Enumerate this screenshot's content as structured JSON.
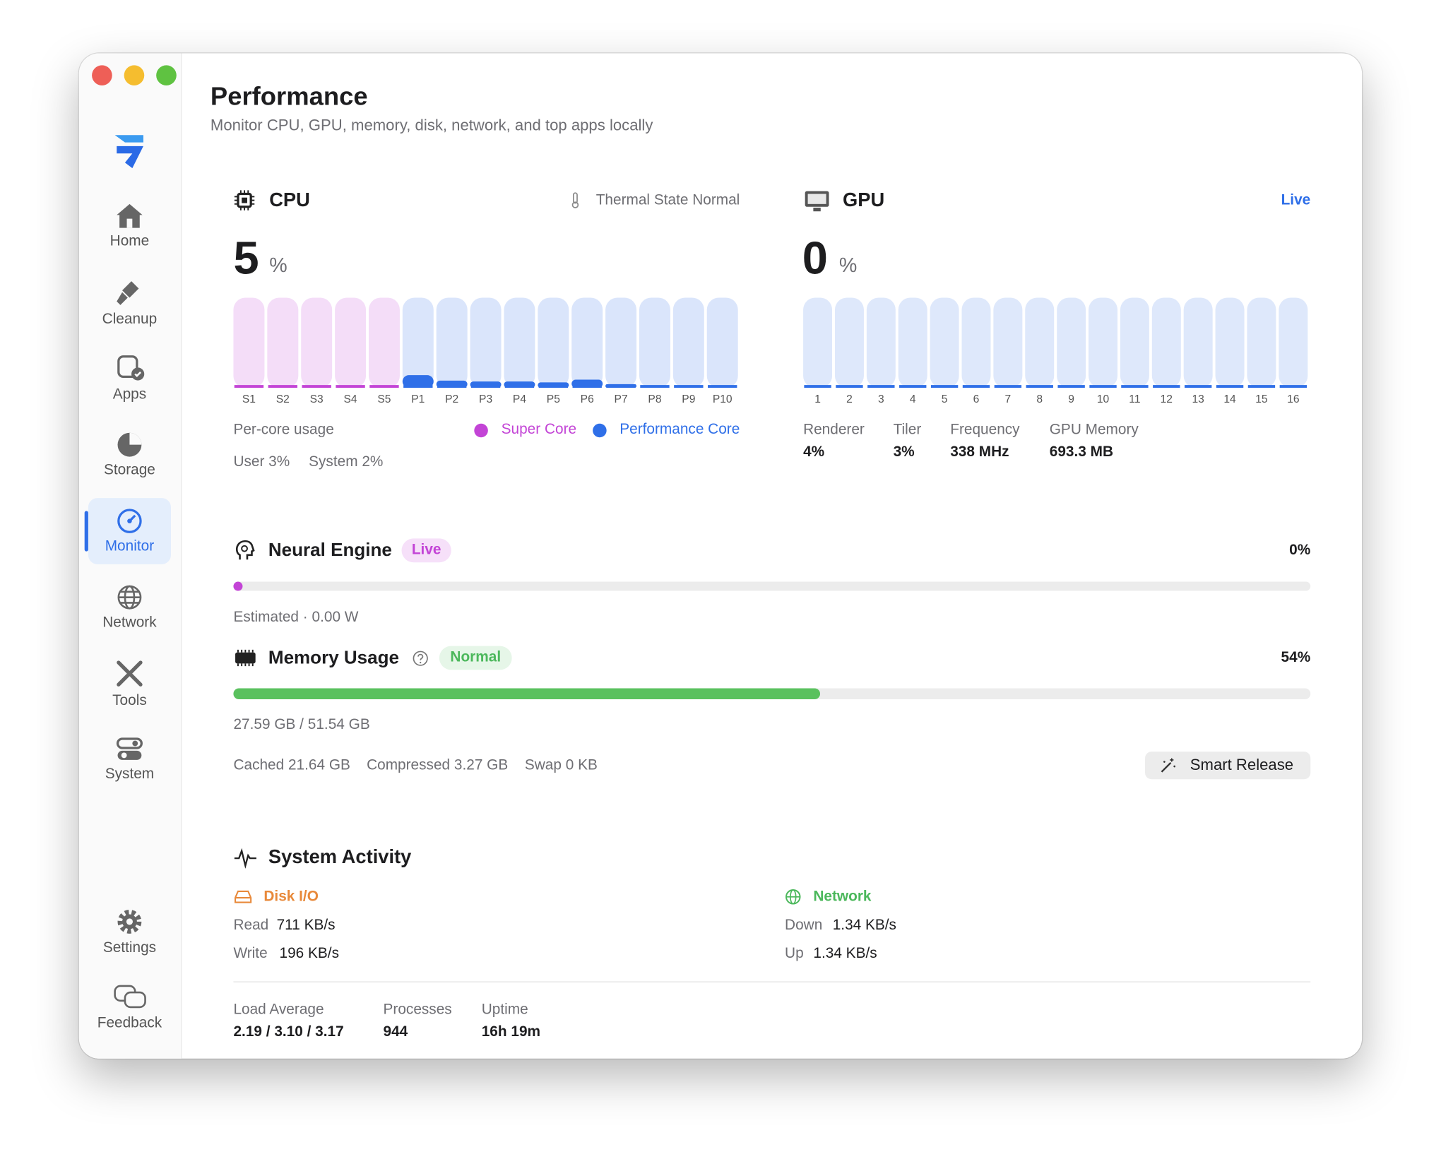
{
  "sidebar": {
    "items": [
      {
        "label": "Home"
      },
      {
        "label": "Cleanup"
      },
      {
        "label": "Apps"
      },
      {
        "label": "Storage"
      },
      {
        "label": "Monitor"
      },
      {
        "label": "Network"
      },
      {
        "label": "Tools"
      },
      {
        "label": "System"
      }
    ],
    "footer": [
      {
        "label": "Settings"
      },
      {
        "label": "Feedback"
      }
    ]
  },
  "header": {
    "title": "Performance",
    "subtitle": "Monitor CPU, GPU, memory, disk, network, and top apps locally"
  },
  "cpu": {
    "title": "CPU",
    "thermal": "Thermal State Normal",
    "value": 5,
    "unit": "%",
    "super_cores": {
      "labels": [
        "S1",
        "S2",
        "S3",
        "S4",
        "S5"
      ],
      "values": [
        0,
        0,
        0,
        0,
        0
      ]
    },
    "performance_cores": {
      "labels": [
        "P1",
        "P2",
        "P3",
        "P4",
        "P5",
        "P6",
        "P7",
        "P8",
        "P9",
        "P10"
      ],
      "values": [
        14,
        8,
        7,
        7,
        6,
        9,
        4,
        0,
        0,
        0
      ]
    },
    "caption": "Per-core usage",
    "legend": [
      {
        "name": "Super Core",
        "color": "#c344d6"
      },
      {
        "name": "Performance Core",
        "color": "#2f6fe8"
      }
    ],
    "user": "User 3%",
    "system": "System 2%"
  },
  "gpu": {
    "title": "GPU",
    "status": "Live",
    "value": 0,
    "unit": "%",
    "color": "#2f6fe8",
    "cores": {
      "labels": [
        "1",
        "2",
        "3",
        "4",
        "5",
        "6",
        "7",
        "8",
        "9",
        "10",
        "11",
        "12",
        "13",
        "14",
        "15",
        "16"
      ],
      "values": [
        0,
        0,
        0,
        0,
        0,
        0,
        0,
        0,
        0,
        0,
        0,
        0,
        0,
        0,
        0,
        0
      ]
    },
    "stats": [
      {
        "label": "Renderer",
        "value": "4%"
      },
      {
        "label": "Tiler",
        "value": "3%"
      },
      {
        "label": "Frequency",
        "value": "338 MHz"
      },
      {
        "label": "GPU Memory",
        "value": "693.3 MB"
      }
    ]
  },
  "neural": {
    "title": "Neural Engine",
    "badge": "Live",
    "usage": 0,
    "usage_label": "0%",
    "power": "Estimated · 0.00 W"
  },
  "memory": {
    "title": "Memory Usage",
    "badge": "Normal",
    "usage": 54,
    "usage_label": "54%",
    "amount": "27.59 GB / 51.54 GB",
    "details": [
      "Cached 21.64 GB",
      "Compressed 3.27 GB",
      "Swap 0 KB"
    ],
    "button": "Smart Release"
  },
  "activity": {
    "title": "System Activity",
    "disk": {
      "title": "Disk I/O",
      "read_label": "Read",
      "read": "711 KB/s",
      "write_label": "Write",
      "write": "196 KB/s"
    },
    "network": {
      "title": "Network",
      "down_label": "Down",
      "down": "1.34 KB/s",
      "up_label": "Up",
      "up": "1.34 KB/s"
    },
    "stats": [
      {
        "label": "Load Average",
        "value": "2.19 / 3.10 / 3.17"
      },
      {
        "label": "Processes",
        "value": "944"
      },
      {
        "label": "Uptime",
        "value": "16h 19m"
      }
    ]
  }
}
